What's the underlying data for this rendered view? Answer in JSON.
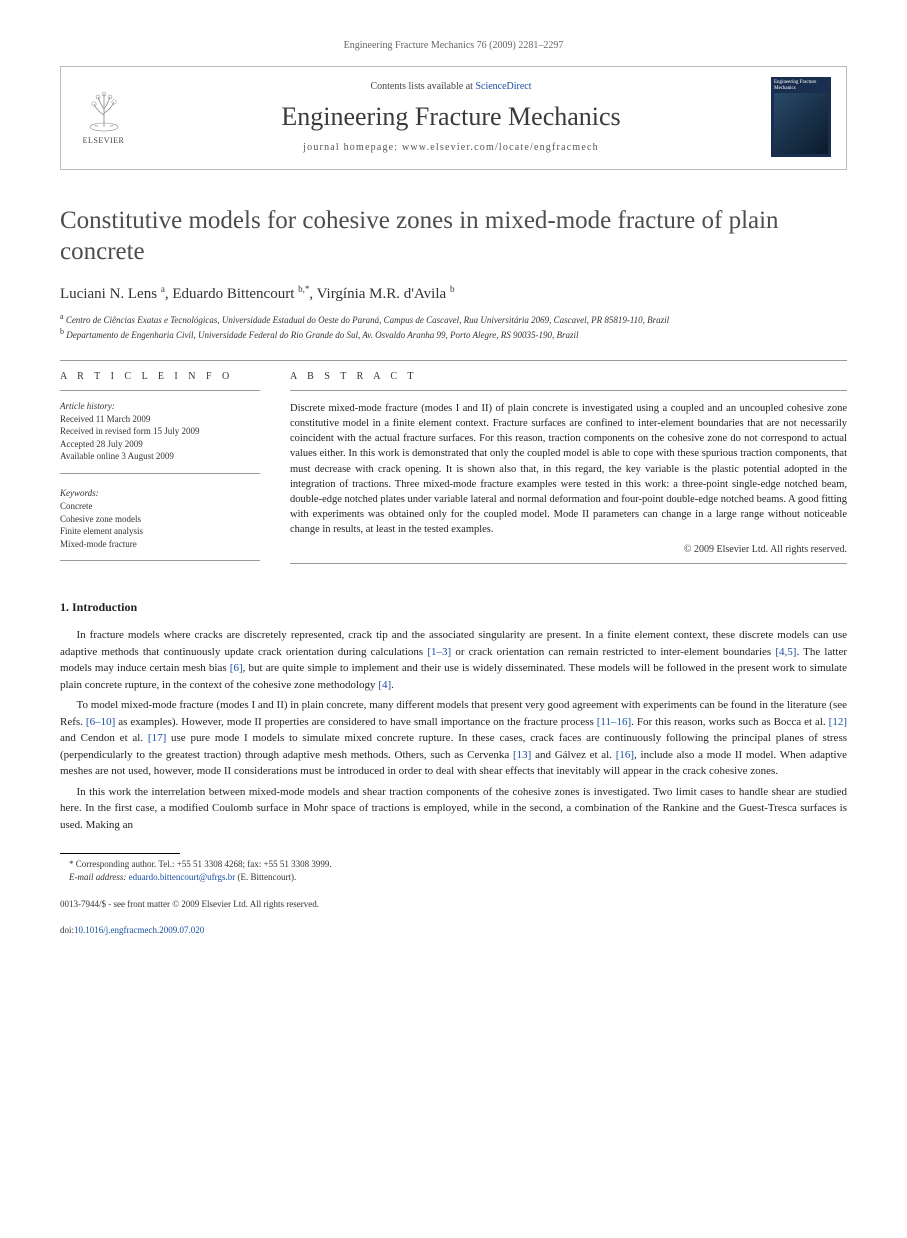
{
  "header": {
    "running_head": "Engineering Fracture Mechanics 76 (2009) 2281–2297"
  },
  "journal_box": {
    "publisher_name": "ELSEVIER",
    "contents_prefix": "Contents lists available at ",
    "contents_link": "ScienceDirect",
    "journal_title": "Engineering Fracture Mechanics",
    "homepage_label": "journal homepage: www.elsevier.com/locate/engfracmech",
    "cover_text": "Engineering Fracture Mechanics"
  },
  "article": {
    "title": "Constitutive models for cohesive zones in mixed-mode fracture of plain concrete",
    "authors_html": "Luciani N. Lens <sup>a</sup>, Eduardo Bittencourt <sup>b,*</sup>, Virgínia M.R. d'Avila <sup>b</sup>",
    "affiliations": {
      "a": "Centro de Ciências Exatas e Tecnológicas, Universidade Estadual do Oeste do Paraná, Campus de Cascavel, Rua Universitária 2069, Cascavel, PR 85819-110, Brazil",
      "b": "Departamento de Engenharia Civil, Universidade Federal do Rio Grande do Sul, Av. Osvaldo Aranha 99, Porto Alegre, RS 90035-190, Brazil"
    }
  },
  "article_info": {
    "heading": "A R T I C L E   I N F O",
    "history_label": "Article history:",
    "history": [
      "Received 11 March 2009",
      "Received in revised form 15 July 2009",
      "Accepted 28 July 2009",
      "Available online 3 August 2009"
    ],
    "keywords_label": "Keywords:",
    "keywords": [
      "Concrete",
      "Cohesive zone models",
      "Finite element analysis",
      "Mixed-mode fracture"
    ]
  },
  "abstract": {
    "heading": "A B S T R A C T",
    "text": "Discrete mixed-mode fracture (modes I and II) of plain concrete is investigated using a coupled and an uncoupled cohesive zone constitutive model in a finite element context. Fracture surfaces are confined to inter-element boundaries that are not necessarily coincident with the actual fracture surfaces. For this reason, traction components on the cohesive zone do not correspond to actual values either. In this work is demonstrated that only the coupled model is able to cope with these spurious traction components, that must decrease with crack opening. It is shown also that, in this regard, the key variable is the plastic potential adopted in the integration of tractions. Three mixed-mode fracture examples were tested in this work: a three-point single-edge notched beam, double-edge notched plates under variable lateral and normal deformation and four-point double-edge notched beams. A good fitting with experiments was obtained only for the coupled model. Mode II parameters can change in a large range without noticeable change in results, at least in the tested examples.",
    "copyright": "© 2009 Elsevier Ltd. All rights reserved."
  },
  "body": {
    "section_number": "1.",
    "section_title": "Introduction",
    "paragraphs": [
      "In fracture models where cracks are discretely represented, crack tip and the associated singularity are present. In a finite element context, these discrete models can use adaptive methods that continuously update crack orientation during calculations [1–3] or crack orientation can remain restricted to inter-element boundaries [4,5]. The latter models may induce certain mesh bias [6], but are quite simple to implement and their use is widely disseminated. These models will be followed in the present work to simulate plain concrete rupture, in the context of the cohesive zone methodology [4].",
      "To model mixed-mode fracture (modes I and II) in plain concrete, many different models that present very good agreement with experiments can be found in the literature (see Refs. [6–10] as examples). However, mode II properties are considered to have small importance on the fracture process [11–16]. For this reason, works such as Bocca et al. [12] and Cendon et al. [17] use pure mode I models to simulate mixed concrete rupture. In these cases, crack faces are continuously following the principal planes of stress (perpendicularly to the greatest traction) through adaptive mesh methods. Others, such as Cervenka [13] and Gálvez et al. [16], include also a mode II model. When adaptive meshes are not used, however, mode II considerations must be introduced in order to deal with shear effects that inevitably will appear in the crack cohesive zones.",
      "In this work the interrelation between mixed-mode models and shear traction components of the cohesive zones is investigated. Two limit cases to handle shear are studied here. In the first case, a modified Coulomb surface in Mohr space of tractions is employed, while in the second, a combination of the Rankine and the Guest-Tresca surfaces is used. Making an"
    ],
    "ref_links": {
      "p0": [
        "[1–3]",
        "[4,5]",
        "[6]",
        "[4]"
      ],
      "p1": [
        "[6–10]",
        "[11–16]",
        "[12]",
        "[17]",
        "[13]",
        "[16]"
      ]
    }
  },
  "footnote": {
    "corresponding": "* Corresponding author. Tel.: +55 51 3308 4268; fax: +55 51 3308 3999.",
    "email_label": "E-mail address:",
    "email": "eduardo.bittencourt@ufrgs.br",
    "email_paren": "(E. Bittencourt)."
  },
  "bottom": {
    "issn_line": "0013-7944/$ - see front matter © 2009 Elsevier Ltd. All rights reserved.",
    "doi_label": "doi:",
    "doi": "10.1016/j.engfracmech.2009.07.020"
  },
  "colors": {
    "link": "#1a4fa3",
    "text": "#252525",
    "heading_gray": "#4d4d4d",
    "rule": "#999999"
  }
}
